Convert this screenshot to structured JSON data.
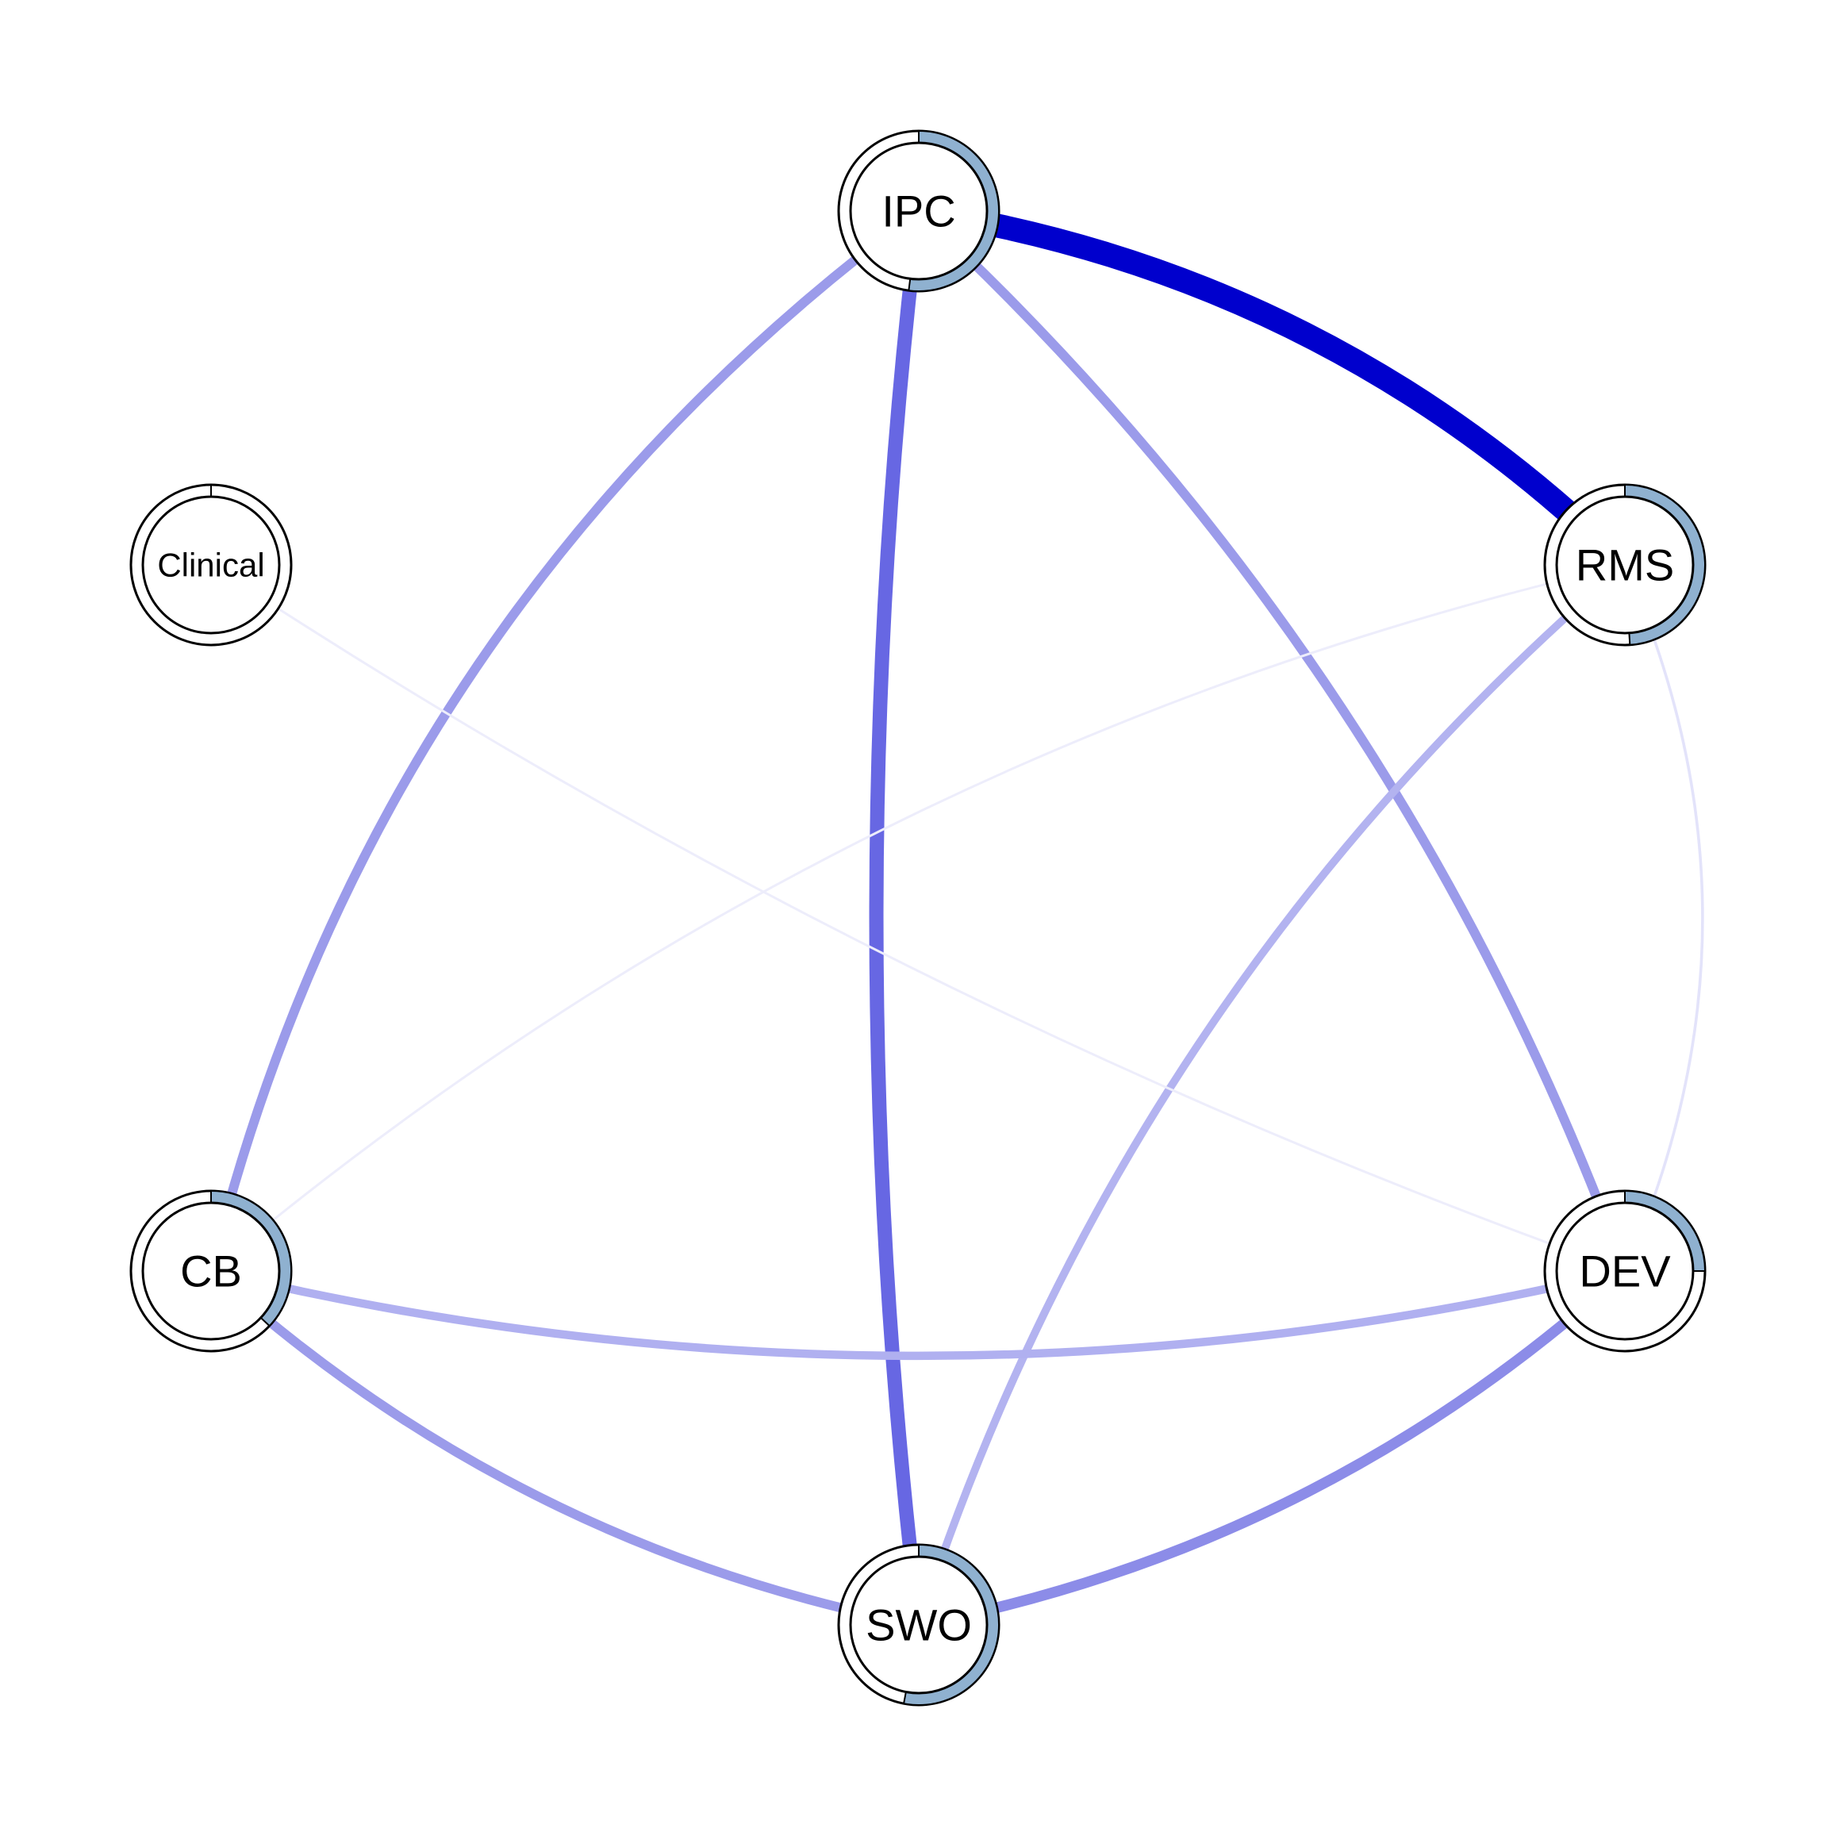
{
  "nodes": [
    {
      "id": "IPC",
      "label": "IPC",
      "pie": 0.52
    },
    {
      "id": "RMS",
      "label": "RMS",
      "pie": 0.49
    },
    {
      "id": "Clinical",
      "label": "Clinical",
      "pie": 0.0
    },
    {
      "id": "CB",
      "label": "CB",
      "pie": 0.37
    },
    {
      "id": "DEV",
      "label": "DEV",
      "pie": 0.25
    },
    {
      "id": "SWO",
      "label": "SWO",
      "pie": 0.53
    }
  ],
  "edges": [
    {
      "from": "IPC",
      "to": "RMS",
      "weight": 1.0,
      "color": "#0000cd"
    },
    {
      "from": "IPC",
      "to": "SWO",
      "weight": 0.6,
      "color": "#6767e3"
    },
    {
      "from": "IPC",
      "to": "CB",
      "weight": 0.4,
      "color": "#9b9bea"
    },
    {
      "from": "IPC",
      "to": "DEV",
      "weight": 0.4,
      "color": "#9b9bea"
    },
    {
      "from": "RMS",
      "to": "SWO",
      "weight": 0.33,
      "color": "#b3b3f0"
    },
    {
      "from": "RMS",
      "to": "DEV",
      "weight": 0.12,
      "color": "#e3e3fa"
    },
    {
      "from": "RMS",
      "to": "CB",
      "weight": 0.08,
      "color": "#ededfb"
    },
    {
      "from": "Clinical",
      "to": "DEV",
      "weight": 0.08,
      "color": "#ededfb"
    },
    {
      "from": "CB",
      "to": "DEV",
      "weight": 0.35,
      "color": "#b0b0f0"
    },
    {
      "from": "CB",
      "to": "SWO",
      "weight": 0.4,
      "color": "#9b9bea"
    },
    {
      "from": "DEV",
      "to": "SWO",
      "weight": 0.45,
      "color": "#8c8ce8"
    }
  ],
  "colors": {
    "pie_fill": "#8fb1d0",
    "node_border": "#000000",
    "node_fill": "#ffffff"
  }
}
